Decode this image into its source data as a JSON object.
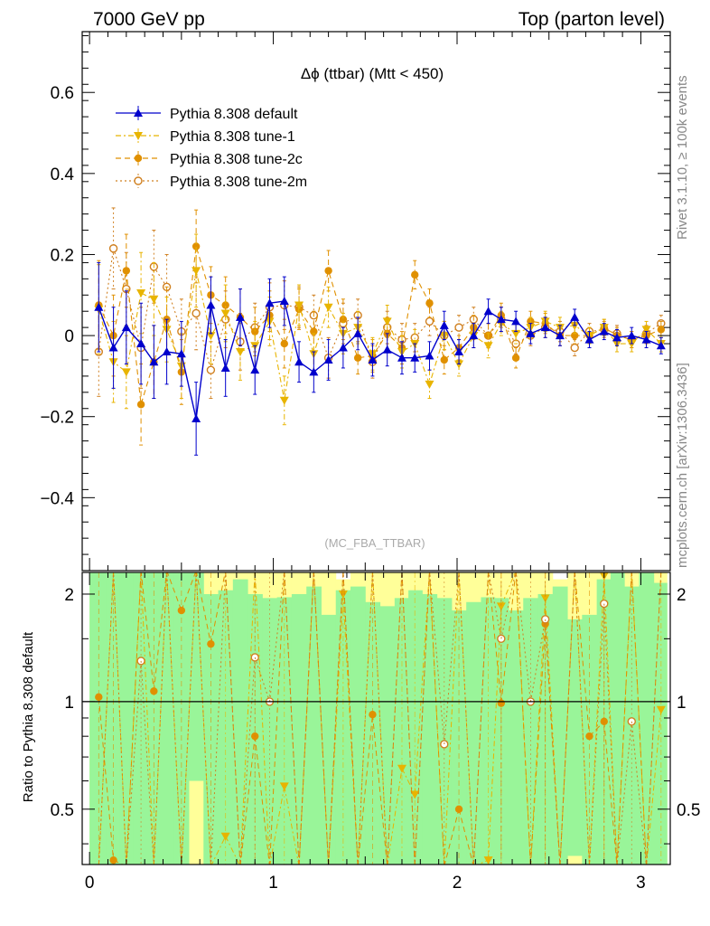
{
  "header": {
    "left": "7000 GeV pp",
    "right": "Top (parton level)"
  },
  "side_labels": {
    "rivet": "Rivet 3.1.10, ≥ 100k events",
    "mcplots": "mcplots.cern.ch [arXiv:1306.3436]"
  },
  "chart_data": [
    {
      "type": "line",
      "title": "Δϕ (ttbar) (Mtt < 450)",
      "watermark": "(MC_FBA_TTBAR)",
      "xlabel": "",
      "ylabel": "",
      "xlim": [
        -0.04,
        3.16
      ],
      "ylim": [
        -0.58,
        0.75
      ],
      "yticks": [
        -0.4,
        -0.2,
        0,
        0.2,
        0.4,
        0.6
      ],
      "ytick_labels": [
        "−0.4",
        "−0.2",
        "0",
        "0.2",
        "0.4",
        "0.6"
      ],
      "xticks": [
        0,
        1,
        2,
        3
      ],
      "xtick_labels": [
        "0",
        "1",
        "2",
        "3"
      ],
      "legend_position": "top-left",
      "x": [
        0.05,
        0.13,
        0.2,
        0.28,
        0.35,
        0.42,
        0.5,
        0.58,
        0.66,
        0.74,
        0.82,
        0.9,
        0.98,
        1.06,
        1.14,
        1.22,
        1.3,
        1.38,
        1.46,
        1.54,
        1.62,
        1.7,
        1.77,
        1.85,
        1.93,
        2.01,
        2.09,
        2.17,
        2.24,
        2.32,
        2.4,
        2.48,
        2.56,
        2.64,
        2.72,
        2.8,
        2.87,
        2.95,
        3.03,
        3.11
      ],
      "series": [
        {
          "name": "Pythia 8.308 default",
          "color": "#0000cc",
          "marker": "triangle-up",
          "line": "solid",
          "values": [
            0.07,
            -0.03,
            0.02,
            -0.02,
            -0.065,
            -0.04,
            -0.045,
            -0.205,
            0.075,
            -0.08,
            0.045,
            -0.085,
            0.08,
            0.085,
            -0.065,
            -0.09,
            -0.06,
            -0.03,
            0.005,
            -0.06,
            -0.035,
            -0.055,
            -0.055,
            -0.05,
            0.025,
            -0.04,
            0.0,
            0.06,
            0.04,
            0.035,
            0.005,
            0.02,
            0.0,
            0.045,
            -0.01,
            0.01,
            -0.005,
            0.0,
            -0.01,
            -0.025
          ],
          "errors": [
            0.11,
            0.1,
            0.09,
            0.1,
            0.09,
            0.08,
            0.08,
            0.09,
            0.07,
            0.07,
            0.07,
            0.06,
            0.06,
            0.06,
            0.05,
            0.05,
            0.05,
            0.05,
            0.04,
            0.04,
            0.04,
            0.04,
            0.035,
            0.035,
            0.035,
            0.03,
            0.03,
            0.03,
            0.03,
            0.025,
            0.025,
            0.025,
            0.025,
            0.02,
            0.02,
            0.02,
            0.02,
            0.02,
            0.02,
            0.02
          ]
        },
        {
          "name": "Pythia 8.308 tune-1",
          "color": "#e8b400",
          "marker": "triangle-down",
          "line": "dashdot",
          "values": [
            0.065,
            -0.065,
            -0.09,
            0.105,
            0.09,
            0.015,
            -0.075,
            0.16,
            0.0,
            0.055,
            -0.04,
            -0.025,
            0.035,
            -0.16,
            0.075,
            -0.045,
            0.07,
            0.005,
            0.02,
            -0.045,
            0.035,
            -0.04,
            -0.02,
            -0.12,
            0.0,
            -0.07,
            0.0,
            -0.025,
            0.03,
            0.005,
            0.02,
            0.035,
            0.02,
            0.025,
            0.0,
            0.02,
            -0.02,
            -0.02,
            0.015,
            -0.02
          ],
          "errors": [
            0.11,
            0.1,
            0.09,
            0.1,
            0.09,
            0.08,
            0.08,
            0.09,
            0.07,
            0.07,
            0.07,
            0.06,
            0.06,
            0.06,
            0.05,
            0.05,
            0.05,
            0.05,
            0.04,
            0.04,
            0.04,
            0.04,
            0.035,
            0.035,
            0.035,
            0.03,
            0.03,
            0.03,
            0.03,
            0.025,
            0.025,
            0.025,
            0.025,
            0.02,
            0.02,
            0.02,
            0.02,
            0.02,
            0.02,
            0.02
          ]
        },
        {
          "name": "Pythia 8.308 tune-2c",
          "color": "#e09000",
          "marker": "circle",
          "line": "dashed",
          "values": [
            0.075,
            0.0,
            0.16,
            -0.17,
            -0.065,
            0.04,
            -0.09,
            0.22,
            0.1,
            0.075,
            0.045,
            0.01,
            0.05,
            -0.02,
            0.065,
            0.01,
            0.16,
            0.04,
            -0.055,
            -0.05,
            0.005,
            -0.03,
            0.15,
            0.08,
            -0.06,
            -0.03,
            0.02,
            0.0,
            0.05,
            -0.055,
            0.035,
            0.03,
            0.0,
            0.0,
            0.0,
            0.02,
            0.0,
            -0.01,
            0.0,
            0.015
          ],
          "errors": [
            0.11,
            0.1,
            0.09,
            0.1,
            0.09,
            0.08,
            0.08,
            0.09,
            0.07,
            0.07,
            0.07,
            0.06,
            0.06,
            0.06,
            0.05,
            0.05,
            0.05,
            0.05,
            0.04,
            0.04,
            0.04,
            0.04,
            0.035,
            0.035,
            0.035,
            0.03,
            0.03,
            0.03,
            0.03,
            0.025,
            0.025,
            0.025,
            0.025,
            0.02,
            0.02,
            0.02,
            0.02,
            0.02,
            0.02,
            0.02
          ]
        },
        {
          "name": "Pythia 8.308 tune-2m",
          "color": "#d08020",
          "marker": "circle-open",
          "line": "dotted",
          "values": [
            -0.04,
            0.215,
            0.115,
            -0.03,
            0.17,
            0.12,
            0.01,
            0.055,
            -0.085,
            0.04,
            -0.015,
            0.02,
            0.07,
            0.075,
            0.07,
            0.05,
            -0.055,
            0.03,
            0.05,
            -0.065,
            0.02,
            -0.01,
            -0.005,
            0.035,
            0.0,
            0.02,
            0.04,
            0.0,
            0.04,
            -0.02,
            0.0,
            0.02,
            0.01,
            -0.03,
            0.01,
            0.015,
            0.005,
            -0.01,
            0.005,
            0.03
          ],
          "errors": [
            0.11,
            0.1,
            0.09,
            0.1,
            0.09,
            0.08,
            0.08,
            0.09,
            0.07,
            0.07,
            0.07,
            0.06,
            0.06,
            0.06,
            0.05,
            0.05,
            0.05,
            0.05,
            0.04,
            0.04,
            0.04,
            0.04,
            0.035,
            0.035,
            0.035,
            0.03,
            0.03,
            0.03,
            0.03,
            0.025,
            0.025,
            0.025,
            0.025,
            0.02,
            0.02,
            0.02,
            0.02,
            0.02,
            0.02,
            0.02
          ]
        }
      ]
    },
    {
      "type": "scatter",
      "title": "",
      "xlabel": "",
      "ylabel": "Ratio to Pythia 8.308 default",
      "xlim": [
        -0.04,
        3.16
      ],
      "ylim": [
        0.35,
        2.3
      ],
      "ytick_labels": [
        "0.5",
        "1",
        "2"
      ],
      "yticks": [
        0.5,
        1,
        2
      ],
      "reference_line": 1,
      "band_colors": {
        "inner": "#99f599",
        "outer": "#ffff99"
      },
      "band_inner": [
        2.3,
        2.3,
        2.3,
        2.3,
        2.3,
        2.3,
        2.3,
        2.3,
        2.0,
        2.05,
        2.2,
        2.0,
        1.95,
        1.96,
        2.0,
        2.1,
        1.75,
        2.05,
        2.1,
        1.9,
        1.85,
        1.95,
        2.05,
        2.0,
        1.95,
        1.8,
        1.9,
        1.96,
        1.95,
        1.8,
        1.95,
        2.0,
        2.1,
        1.7,
        1.75,
        2.2,
        2.3,
        2.1,
        2.3,
        2.15
      ],
      "band_outer": [
        2.3,
        2.3,
        2.3,
        2.3,
        2.3,
        2.3,
        2.3,
        2.15,
        2.3,
        2.3,
        2.3,
        2.3,
        2.3,
        2.3,
        2.3,
        2.3,
        2.3,
        2.2,
        2.3,
        2.3,
        2.3,
        2.3,
        2.3,
        2.3,
        2.3,
        2.3,
        2.3,
        2.3,
        2.3,
        2.3,
        2.3,
        2.3,
        2.2,
        2.3,
        2.3,
        2.3,
        2.3,
        2.3,
        2.3,
        2.3
      ],
      "band_inner_low": [
        0.35,
        0.35,
        0.35,
        0.35,
        0.35,
        0.35,
        0.35,
        0.6,
        0.35,
        0.35,
        0.35,
        0.35,
        0.35,
        0.35,
        0.35,
        0.35,
        0.35,
        0.35,
        0.35,
        0.35,
        0.35,
        0.35,
        0.35,
        0.35,
        0.35,
        0.35,
        0.35,
        0.35,
        0.35,
        0.35,
        0.35,
        0.35,
        0.35,
        0.37,
        0.35,
        0.35,
        0.35,
        0.35,
        0.35,
        0.35
      ],
      "series": [
        {
          "name": "Pythia 8.308 tune-1",
          "color": "#e8b400",
          "marker": "triangle-down",
          "values": [
            null,
            null,
            null,
            null,
            null,
            null,
            null,
            null,
            null,
            0.42,
            null,
            null,
            null,
            0.58,
            null,
            null,
            null,
            2.0,
            null,
            null,
            null,
            0.65,
            0.55,
            null,
            null,
            null,
            null,
            0.36,
            1.85,
            null,
            null,
            1.95,
            null,
            null,
            null,
            2.25,
            null,
            null,
            null,
            0.95
          ]
        },
        {
          "name": "Pythia 8.308 tune-2c",
          "color": "#e09000",
          "marker": "circle",
          "values": [
            1.03,
            0.36,
            null,
            null,
            1.07,
            null,
            1.8,
            null,
            1.45,
            null,
            null,
            0.8,
            null,
            null,
            null,
            null,
            null,
            null,
            null,
            0.92,
            null,
            null,
            null,
            null,
            null,
            0.5,
            null,
            null,
            0.99,
            null,
            null,
            1.65,
            null,
            null,
            0.8,
            0.88,
            null,
            null,
            null,
            null
          ]
        },
        {
          "name": "Pythia 8.308 tune-2m",
          "color": "#d08020",
          "marker": "circle-open",
          "values": [
            null,
            null,
            null,
            1.3,
            null,
            null,
            null,
            null,
            null,
            null,
            null,
            1.33,
            1.0,
            null,
            null,
            null,
            null,
            null,
            null,
            null,
            null,
            null,
            null,
            null,
            0.76,
            null,
            null,
            null,
            1.5,
            null,
            1.0,
            1.7,
            null,
            null,
            null,
            1.88,
            null,
            0.88,
            null,
            null
          ]
        }
      ]
    }
  ]
}
